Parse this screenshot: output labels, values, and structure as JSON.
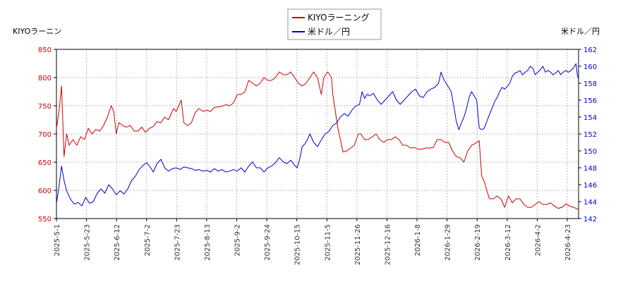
{
  "chart_data": {
    "type": "line",
    "left_axis_label": "KIYOラーニン",
    "right_axis_label": "米ドル／円",
    "legend_position": "top-center",
    "grid": true,
    "x_tick_labels": [
      "2025-5-1",
      "2025-5-23",
      "2025-6-12",
      "2025-7-2",
      "2025-7-23",
      "2025-8-13",
      "2025-9-2",
      "2025-9-24",
      "2025-10-15",
      "2025-11-5",
      "2025-11-26",
      "2025-12-16",
      "2026-1-8",
      "2026-1-29",
      "2026-2-19",
      "2026-3-12",
      "2026-4-2",
      "2026-4-23"
    ],
    "left_ylim": [
      550,
      850
    ],
    "left_yticks": [
      550,
      600,
      650,
      700,
      750,
      800,
      850
    ],
    "right_ylim": [
      142,
      162
    ],
    "right_yticks": [
      142,
      144,
      146,
      148,
      150,
      152,
      154,
      156,
      158,
      160,
      162
    ],
    "series": [
      {
        "name": "KIYOラーニング",
        "axis": "left",
        "color": "#cc0000",
        "values": [
          [
            0,
            710
          ],
          [
            4,
            740
          ],
          [
            8,
            785
          ],
          [
            12,
            660
          ],
          [
            16,
            700
          ],
          [
            20,
            680
          ],
          [
            26,
            690
          ],
          [
            32,
            680
          ],
          [
            38,
            695
          ],
          [
            44,
            690
          ],
          [
            50,
            710
          ],
          [
            56,
            700
          ],
          [
            62,
            708
          ],
          [
            68,
            705
          ],
          [
            74,
            715
          ],
          [
            80,
            730
          ],
          [
            86,
            750
          ],
          [
            90,
            740
          ],
          [
            94,
            700
          ],
          [
            98,
            720
          ],
          [
            104,
            715
          ],
          [
            110,
            712
          ],
          [
            116,
            715
          ],
          [
            122,
            705
          ],
          [
            128,
            705
          ],
          [
            134,
            712
          ],
          [
            140,
            703
          ],
          [
            146,
            710
          ],
          [
            152,
            713
          ],
          [
            158,
            722
          ],
          [
            164,
            720
          ],
          [
            170,
            730
          ],
          [
            176,
            725
          ],
          [
            180,
            735
          ],
          [
            184,
            745
          ],
          [
            188,
            740
          ],
          [
            192,
            750
          ],
          [
            196,
            760
          ],
          [
            200,
            720
          ],
          [
            206,
            715
          ],
          [
            212,
            720
          ],
          [
            218,
            738
          ],
          [
            224,
            745
          ],
          [
            230,
            740
          ],
          [
            236,
            742
          ],
          [
            242,
            740
          ],
          [
            248,
            747
          ],
          [
            254,
            748
          ],
          [
            260,
            749
          ],
          [
            266,
            752
          ],
          [
            272,
            750
          ],
          [
            278,
            755
          ],
          [
            284,
            770
          ],
          [
            290,
            770
          ],
          [
            296,
            775
          ],
          [
            302,
            795
          ],
          [
            308,
            790
          ],
          [
            314,
            785
          ],
          [
            320,
            790
          ],
          [
            326,
            800
          ],
          [
            332,
            795
          ],
          [
            338,
            795
          ],
          [
            344,
            800
          ],
          [
            350,
            810
          ],
          [
            356,
            805
          ],
          [
            362,
            805
          ],
          [
            368,
            810
          ],
          [
            374,
            800
          ],
          [
            380,
            790
          ],
          [
            386,
            785
          ],
          [
            392,
            790
          ],
          [
            398,
            800
          ],
          [
            404,
            810
          ],
          [
            410,
            800
          ],
          [
            416,
            770
          ],
          [
            420,
            800
          ],
          [
            426,
            810
          ],
          [
            432,
            800
          ],
          [
            434,
            770
          ],
          [
            438,
            740
          ],
          [
            442,
            710
          ],
          [
            446,
            690
          ],
          [
            450,
            668
          ],
          [
            456,
            670
          ],
          [
            462,
            675
          ],
          [
            468,
            680
          ],
          [
            474,
            700
          ],
          [
            478,
            700
          ],
          [
            484,
            690
          ],
          [
            490,
            690
          ],
          [
            496,
            695
          ],
          [
            502,
            700
          ],
          [
            508,
            690
          ],
          [
            514,
            685
          ],
          [
            520,
            690
          ],
          [
            526,
            690
          ],
          [
            532,
            695
          ],
          [
            538,
            690
          ],
          [
            544,
            680
          ],
          [
            550,
            680
          ],
          [
            556,
            675
          ],
          [
            562,
            676
          ],
          [
            568,
            673
          ],
          [
            574,
            673
          ],
          [
            580,
            675
          ],
          [
            586,
            675
          ],
          [
            592,
            676
          ],
          [
            598,
            690
          ],
          [
            604,
            690
          ],
          [
            610,
            685
          ],
          [
            616,
            685
          ],
          [
            622,
            670
          ],
          [
            628,
            660
          ],
          [
            634,
            658
          ],
          [
            640,
            650
          ],
          [
            646,
            670
          ],
          [
            652,
            680
          ],
          [
            656,
            682
          ],
          [
            660,
            685
          ],
          [
            664,
            688
          ],
          [
            668,
            625
          ],
          [
            672,
            615
          ],
          [
            676,
            600
          ],
          [
            680,
            585
          ],
          [
            686,
            585
          ],
          [
            692,
            590
          ],
          [
            698,
            585
          ],
          [
            704,
            570
          ],
          [
            710,
            590
          ],
          [
            716,
            578
          ],
          [
            722,
            585
          ],
          [
            728,
            585
          ],
          [
            734,
            575
          ],
          [
            740,
            570
          ],
          [
            746,
            570
          ],
          [
            752,
            575
          ],
          [
            758,
            580
          ],
          [
            764,
            575
          ],
          [
            770,
            575
          ],
          [
            776,
            578
          ],
          [
            782,
            572
          ],
          [
            788,
            568
          ],
          [
            794,
            570
          ],
          [
            800,
            576
          ],
          [
            806,
            572
          ],
          [
            812,
            570
          ],
          [
            820,
            566
          ]
        ]
      },
      {
        "name": "米ドル／円",
        "axis": "right",
        "color": "#0000cc",
        "values": [
          [
            0,
            143.8
          ],
          [
            4,
            145.8
          ],
          [
            8,
            148.2
          ],
          [
            12,
            146.5
          ],
          [
            16,
            145.3
          ],
          [
            22,
            144.3
          ],
          [
            28,
            143.7
          ],
          [
            34,
            143.9
          ],
          [
            40,
            143.5
          ],
          [
            46,
            144.5
          ],
          [
            52,
            143.8
          ],
          [
            58,
            144.0
          ],
          [
            64,
            145.0
          ],
          [
            70,
            145.5
          ],
          [
            76,
            145.0
          ],
          [
            82,
            146.0
          ],
          [
            88,
            145.5
          ],
          [
            94,
            144.8
          ],
          [
            100,
            145.3
          ],
          [
            106,
            144.9
          ],
          [
            112,
            145.5
          ],
          [
            118,
            146.5
          ],
          [
            124,
            147.0
          ],
          [
            130,
            147.8
          ],
          [
            136,
            148.3
          ],
          [
            142,
            148.6
          ],
          [
            148,
            148.0
          ],
          [
            152,
            147.5
          ],
          [
            158,
            148.5
          ],
          [
            164,
            149.0
          ],
          [
            170,
            148.0
          ],
          [
            176,
            147.6
          ],
          [
            182,
            147.9
          ],
          [
            188,
            148.0
          ],
          [
            194,
            147.8
          ],
          [
            200,
            148.1
          ],
          [
            206,
            148.0
          ],
          [
            212,
            147.9
          ],
          [
            218,
            147.7
          ],
          [
            224,
            147.8
          ],
          [
            230,
            147.6
          ],
          [
            236,
            147.7
          ],
          [
            242,
            147.5
          ],
          [
            248,
            147.9
          ],
          [
            254,
            147.6
          ],
          [
            260,
            147.8
          ],
          [
            266,
            147.5
          ],
          [
            272,
            147.6
          ],
          [
            278,
            147.8
          ],
          [
            284,
            147.6
          ],
          [
            290,
            148.0
          ],
          [
            296,
            147.5
          ],
          [
            302,
            148.2
          ],
          [
            308,
            148.7
          ],
          [
            314,
            148.0
          ],
          [
            320,
            148.0
          ],
          [
            326,
            147.5
          ],
          [
            332,
            148.0
          ],
          [
            338,
            148.2
          ],
          [
            344,
            148.6
          ],
          [
            350,
            149.2
          ],
          [
            356,
            148.7
          ],
          [
            362,
            148.5
          ],
          [
            368,
            148.9
          ],
          [
            374,
            148.3
          ],
          [
            378,
            148.0
          ],
          [
            382,
            149.0
          ],
          [
            386,
            150.5
          ],
          [
            390,
            150.8
          ],
          [
            394,
            151.3
          ],
          [
            398,
            152.0
          ],
          [
            404,
            151.0
          ],
          [
            410,
            150.5
          ],
          [
            416,
            151.3
          ],
          [
            422,
            152.0
          ],
          [
            428,
            152.3
          ],
          [
            434,
            153.0
          ],
          [
            440,
            153.3
          ],
          [
            446,
            154.0
          ],
          [
            452,
            154.4
          ],
          [
            458,
            154.1
          ],
          [
            464,
            154.8
          ],
          [
            470,
            155.3
          ],
          [
            476,
            155.5
          ],
          [
            480,
            157.0
          ],
          [
            484,
            156.2
          ],
          [
            488,
            156.7
          ],
          [
            492,
            156.5
          ],
          [
            498,
            156.8
          ],
          [
            504,
            156.0
          ],
          [
            510,
            155.5
          ],
          [
            516,
            156.0
          ],
          [
            522,
            156.5
          ],
          [
            528,
            157.0
          ],
          [
            534,
            156.0
          ],
          [
            540,
            155.5
          ],
          [
            546,
            156.0
          ],
          [
            552,
            156.5
          ],
          [
            558,
            157.0
          ],
          [
            564,
            157.3
          ],
          [
            570,
            156.5
          ],
          [
            576,
            156.3
          ],
          [
            582,
            157.0
          ],
          [
            588,
            157.3
          ],
          [
            594,
            157.5
          ],
          [
            600,
            158.0
          ],
          [
            604,
            159.3
          ],
          [
            608,
            158.5
          ],
          [
            612,
            158.0
          ],
          [
            616,
            157.5
          ],
          [
            620,
            157.0
          ],
          [
            624,
            155.3
          ],
          [
            628,
            153.5
          ],
          [
            632,
            152.5
          ],
          [
            636,
            153.3
          ],
          [
            640,
            154.0
          ],
          [
            644,
            155.0
          ],
          [
            648,
            156.3
          ],
          [
            652,
            157.0
          ],
          [
            656,
            156.5
          ],
          [
            660,
            156.0
          ],
          [
            664,
            152.7
          ],
          [
            668,
            152.5
          ],
          [
            672,
            152.7
          ],
          [
            676,
            153.5
          ],
          [
            680,
            154.3
          ],
          [
            684,
            155.0
          ],
          [
            688,
            155.8
          ],
          [
            692,
            156.3
          ],
          [
            696,
            157.0
          ],
          [
            700,
            157.5
          ],
          [
            704,
            157.3
          ],
          [
            708,
            157.6
          ],
          [
            712,
            158.0
          ],
          [
            716,
            158.8
          ],
          [
            720,
            159.2
          ],
          [
            724,
            159.3
          ],
          [
            728,
            159.5
          ],
          [
            732,
            159.0
          ],
          [
            736,
            159.3
          ],
          [
            740,
            159.5
          ],
          [
            744,
            160.0
          ],
          [
            748,
            159.8
          ],
          [
            752,
            159.0
          ],
          [
            756,
            159.3
          ],
          [
            760,
            159.6
          ],
          [
            764,
            160.0
          ],
          [
            768,
            159.3
          ],
          [
            772,
            159.5
          ],
          [
            776,
            159.3
          ],
          [
            780,
            159.0
          ],
          [
            784,
            159.2
          ],
          [
            788,
            159.5
          ],
          [
            792,
            159.0
          ],
          [
            796,
            159.3
          ],
          [
            800,
            159.5
          ],
          [
            804,
            159.3
          ],
          [
            808,
            159.5
          ],
          [
            812,
            159.8
          ],
          [
            816,
            160.3
          ],
          [
            818,
            159.0
          ],
          [
            820,
            158.5
          ]
        ]
      }
    ]
  }
}
